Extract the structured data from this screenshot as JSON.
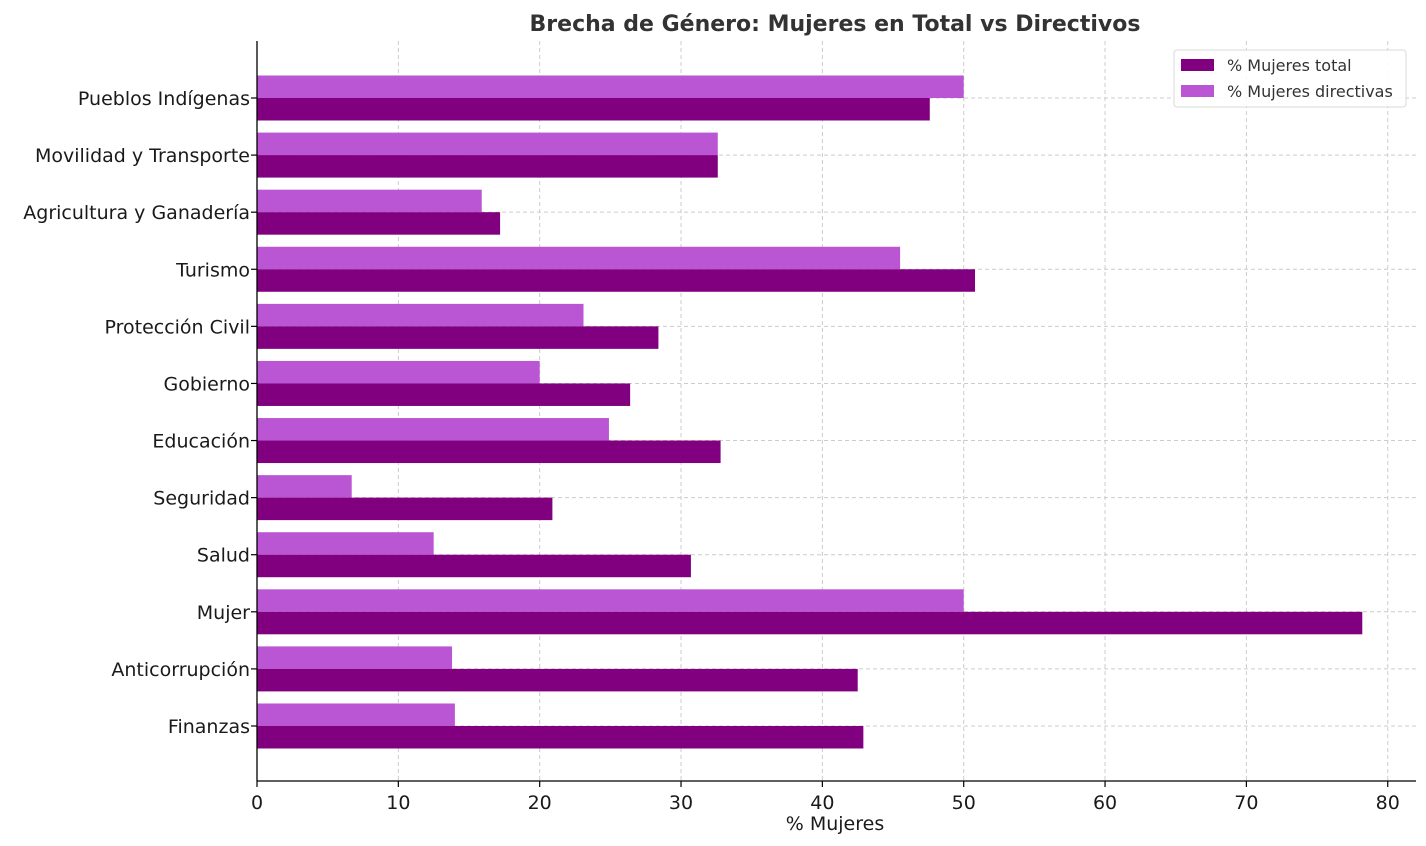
{
  "chart_data": {
    "type": "bar",
    "orientation": "horizontal",
    "title": "Brecha de Género: Mujeres en Total vs Directivos",
    "xlabel": "% Mujeres",
    "ylabel": "",
    "xlim": [
      0,
      82
    ],
    "xticks": [
      0,
      10,
      20,
      30,
      40,
      50,
      60,
      70,
      80
    ],
    "grid": true,
    "legend_position": "top-right",
    "categories": [
      "Pueblos Indígenas",
      "Movilidad y Transporte",
      "Agricultura y Ganadería",
      "Turismo",
      "Protección Civil",
      "Gobierno",
      "Educación",
      "Seguridad",
      "Salud",
      "Mujer",
      "Anticorrupción",
      "Finanzas"
    ],
    "series": [
      {
        "name": "% Mujeres total",
        "color": "#800080",
        "values": [
          47.6,
          32.6,
          17.2,
          50.8,
          28.4,
          26.4,
          32.8,
          20.9,
          30.7,
          78.2,
          42.5,
          42.9
        ]
      },
      {
        "name": "% Mujeres directivas",
        "color": "#ba55d3",
        "values": [
          50.0,
          32.6,
          15.9,
          45.5,
          23.1,
          20.0,
          24.9,
          6.7,
          12.5,
          50.0,
          13.8,
          14.0
        ]
      }
    ]
  }
}
